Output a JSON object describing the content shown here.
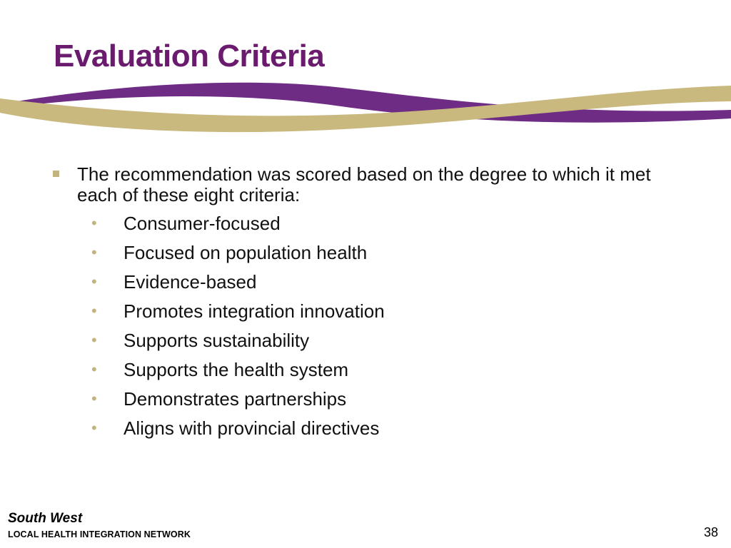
{
  "slide": {
    "title": "Evaluation Criteria",
    "main_bullet": "The recommendation was scored based on the degree to which it met each of these eight criteria:",
    "criteria": [
      "Consumer-focused",
      "Focused on population health",
      "Evidence-based",
      "Promotes integration innovation",
      "Supports sustainability",
      "Supports the health system",
      "Demonstrates partnerships",
      "Aligns with provincial directives"
    ],
    "bullet_glyph": "•"
  },
  "footer": {
    "org_name": "South West",
    "org_subtitle": "LOCAL HEALTH INTEGRATION NETWORK",
    "page_number": "38"
  },
  "colors": {
    "title": "#6a1b6e",
    "purple_band": "#6e2c84",
    "gold_band": "#c9b97f",
    "bullet": "#c2b37f"
  },
  "icons": {
    "main_bullet": "square-bullet-icon",
    "sub_bullet": "dot-bullet-icon",
    "decoration": "swoosh-ribbon"
  }
}
